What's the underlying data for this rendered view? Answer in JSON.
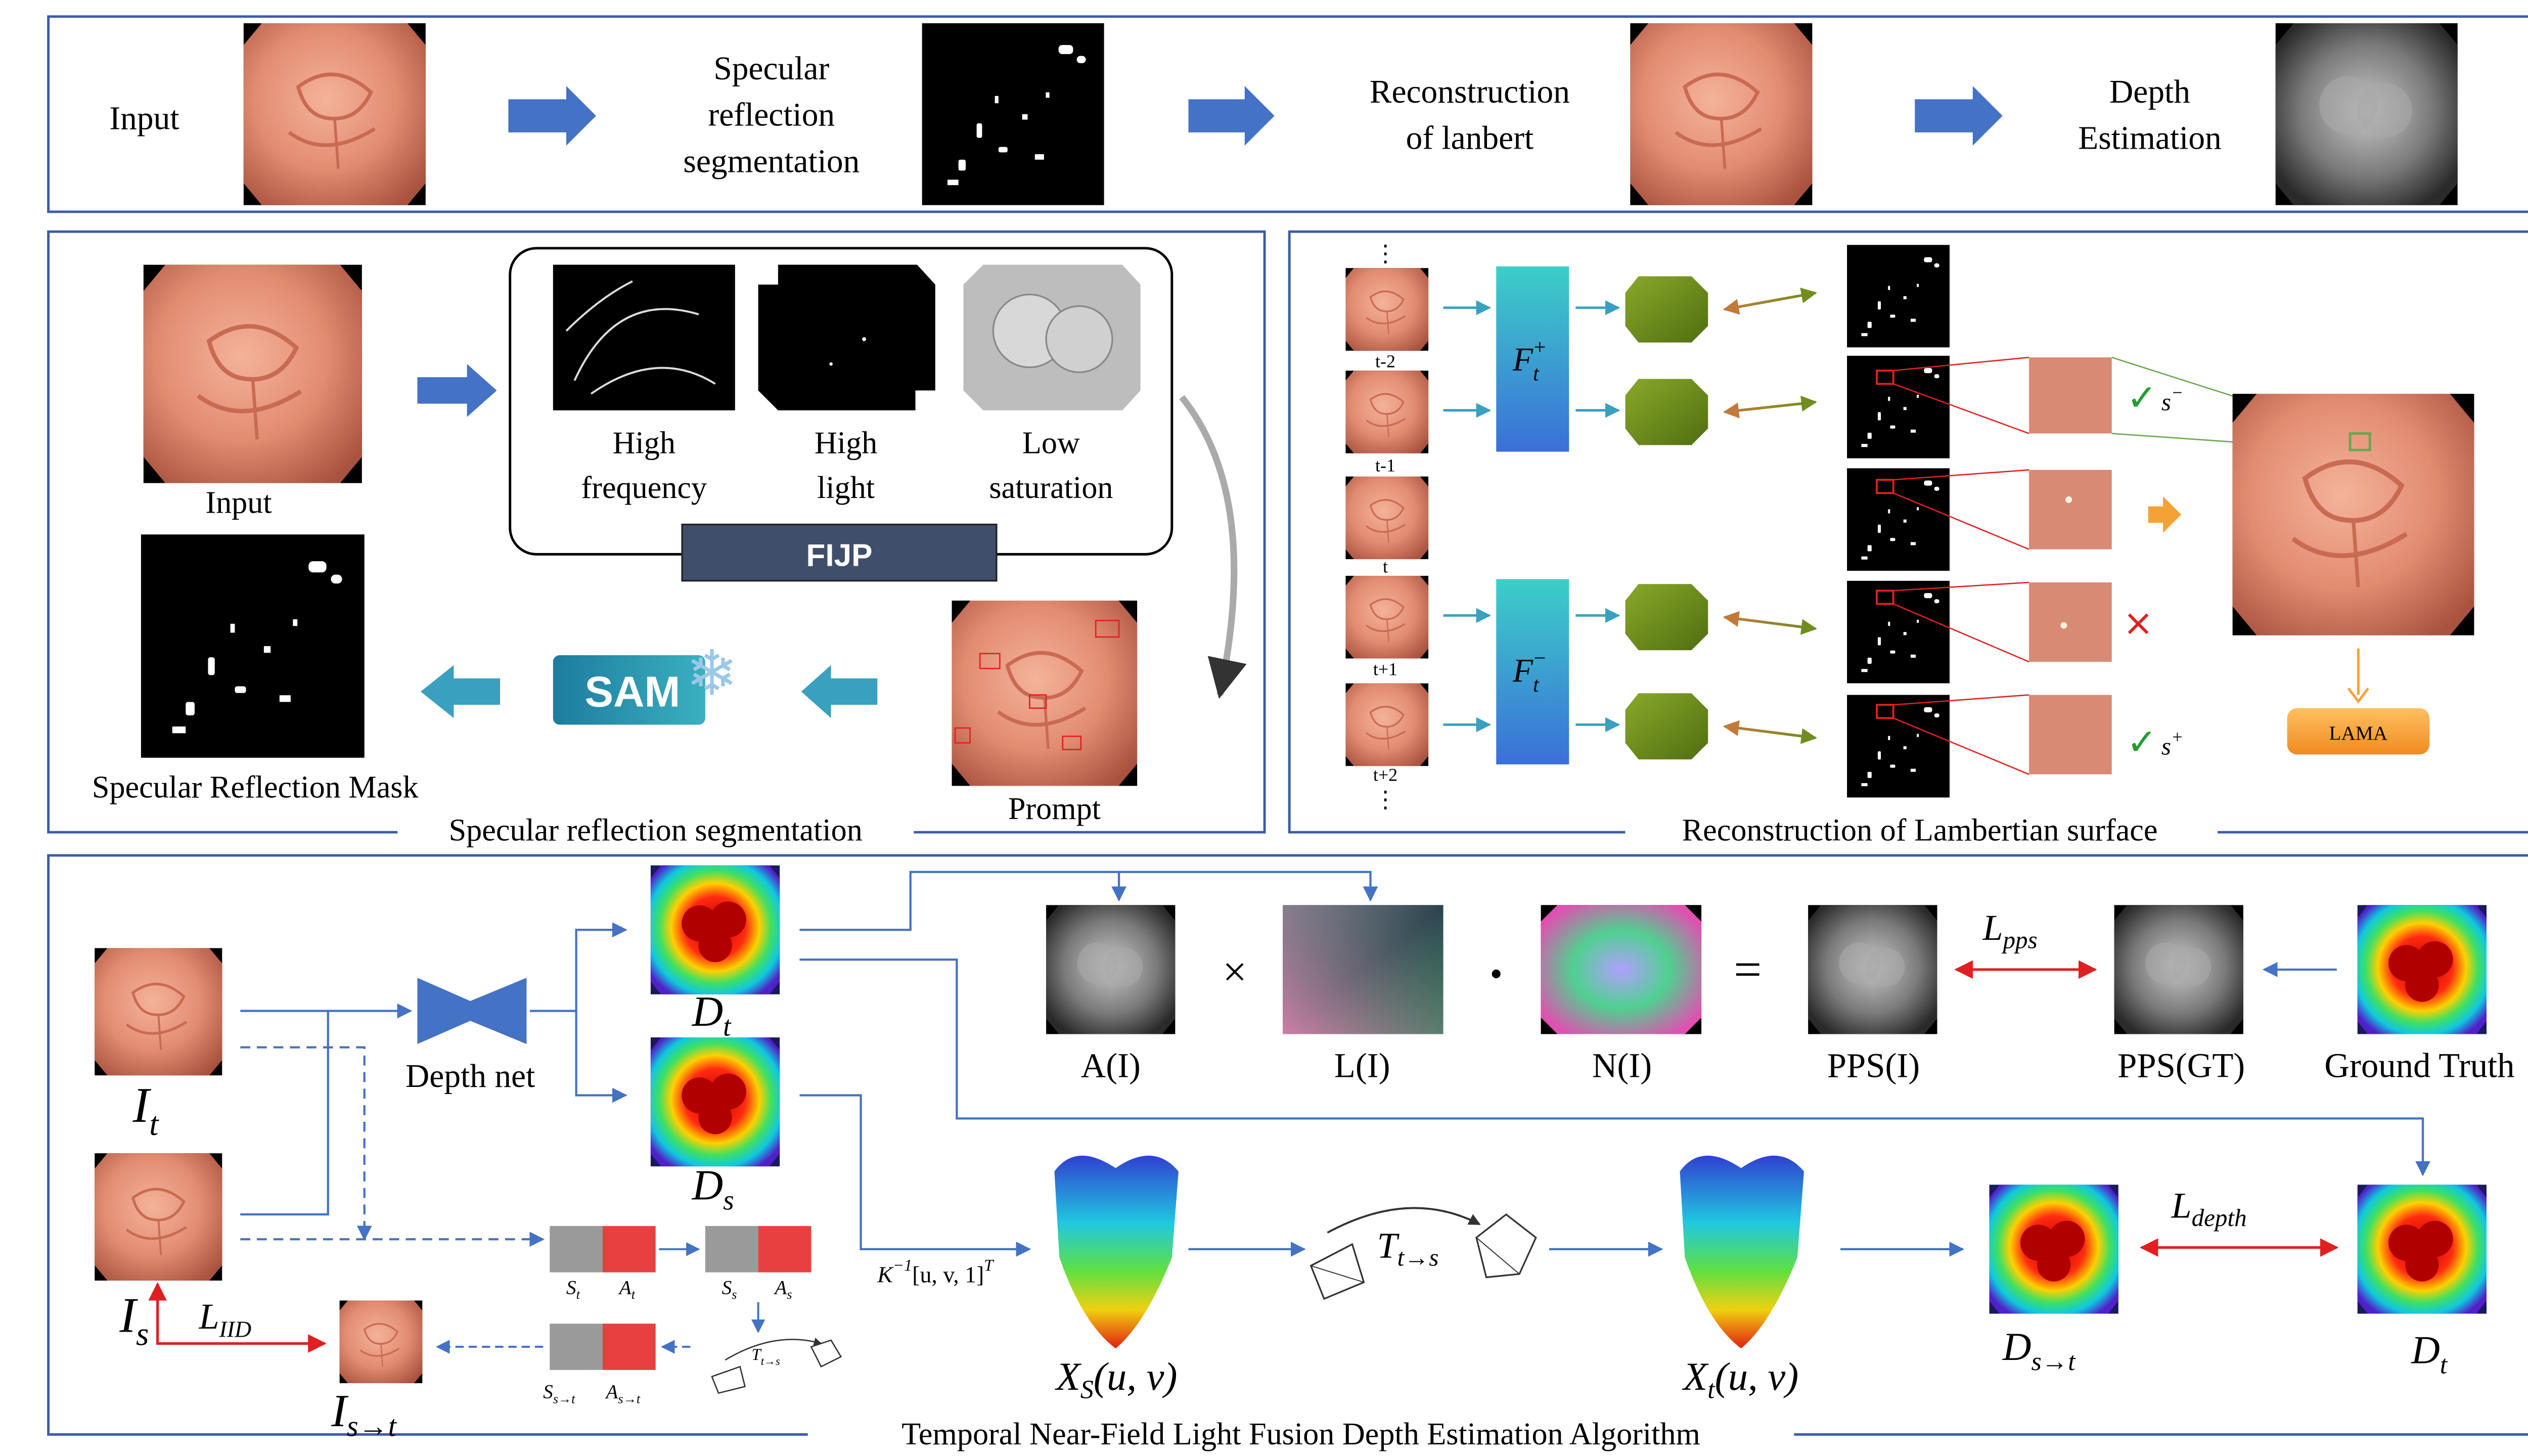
{
  "pipeline": {
    "input": "Input",
    "specular": [
      "Specular",
      "reflection",
      "segmentation"
    ],
    "recon": [
      "Reconstruction",
      "of lanbert"
    ],
    "depth": [
      "Depth",
      "Estimation"
    ]
  },
  "seg": {
    "input": "Input",
    "hf": [
      "High",
      "frequency"
    ],
    "hl": [
      "High",
      "light"
    ],
    "ls": [
      "Low",
      "saturation"
    ],
    "fijp": "FIJP",
    "sam": "SAM",
    "prompt": "Prompt",
    "mask": "Specular Reflection Mask",
    "title": "Specular reflection segmentation"
  },
  "lamb": {
    "frames": [
      "t-2",
      "t-1",
      "t",
      "t+1",
      "t+2"
    ],
    "dots": "⋮",
    "fplus": "F",
    "fminus": "F",
    "sub_t": "t",
    "sup_plus": "+",
    "sup_minus": "−",
    "s_minus": "s",
    "s_plus": "s",
    "check": "✓",
    "cross": "×",
    "lama": "LAMA",
    "title": "Reconstruction of Lambertian surface"
  },
  "temporal": {
    "It": "I",
    "It_sub": "t",
    "Is": "I",
    "Is_sub": "s",
    "Ist": "I",
    "Ist_sub": "s→t",
    "depthnet": "Depth net",
    "Dt": "D",
    "Dt_sub": "t",
    "Ds": "D",
    "Ds_sub": "s",
    "liid": "L",
    "liid_sub": "IID",
    "St": "S",
    "St_sub": "t",
    "At": "A",
    "At_sub": "t",
    "Ss": "S",
    "Ss_sub": "s",
    "As": "A",
    "As_sub": "s",
    "Sst": "S",
    "Sst_sub": "s→t",
    "Ast": "A",
    "Ast_sub": "s→t",
    "T": "T",
    "T_sub": "t→s",
    "Kinv": "K",
    "Kinv_sup": "−1",
    "Kinv_rest": "[u, v, 1]",
    "Kinv_T": "T",
    "AI": "A(I)",
    "LI": "L(I)",
    "NI": "N(I)",
    "times": "×",
    "dot": "•",
    "eq": "=",
    "PPSI": "PPS(I)",
    "PPSGT": "PPS(GT)",
    "GT": "Ground Truth",
    "Lpps": "L",
    "Lpps_sub": "pps",
    "Xs": "X",
    "Xs_sub": "S",
    "Xs_arg": "(u, v)",
    "Xt": "X",
    "Xt_sub": "t",
    "Xt_arg": "(u, v)",
    "Dst": "D",
    "Dst_sub": "s→t",
    "Dt2": "D",
    "Dt2_sub": "t",
    "Ldepth": "L",
    "Ldepth_sub": "depth",
    "title": "Temporal Near-Field Light Fusion Depth Estimation Algorithm"
  },
  "colors": {
    "frame": "#3d5ca8",
    "arrow": "#4472c4",
    "red": "#e02020",
    "teal": "#3aa0c0",
    "olive": "#6f8e1e",
    "fijp": "#3f4e6b",
    "lama": "#f4a236",
    "check": "#1f9e30"
  }
}
